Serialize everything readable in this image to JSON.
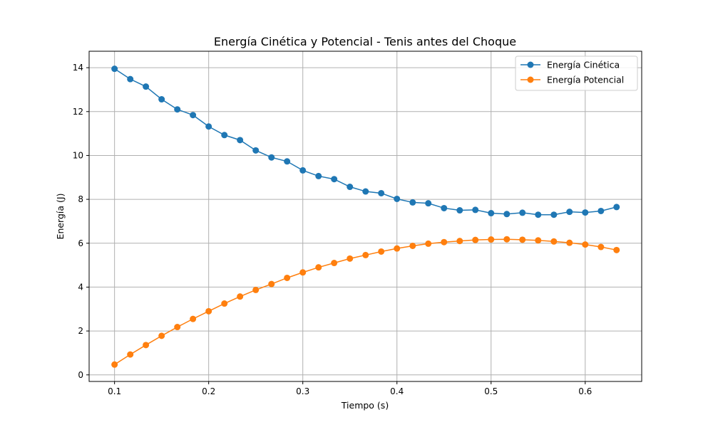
{
  "chart_data": {
    "type": "line",
    "title": "Energía Cinética y Potencial - Tenis antes del Choque",
    "xlabel": "Tiempo (s)",
    "ylabel": "Energía (J)",
    "xlim": [
      0.073,
      0.66
    ],
    "ylim": [
      -0.3,
      14.75
    ],
    "xticks": [
      0.1,
      0.2,
      0.3,
      0.4,
      0.5,
      0.6
    ],
    "xtick_labels": [
      "0.1",
      "0.2",
      "0.3",
      "0.4",
      "0.5",
      "0.6"
    ],
    "yticks": [
      0,
      2,
      4,
      6,
      8,
      10,
      12,
      14
    ],
    "ytick_labels": [
      "0",
      "2",
      "4",
      "6",
      "8",
      "10",
      "12",
      "14"
    ],
    "grid": true,
    "legend_position": "top-right",
    "x": [
      0.1,
      0.1167,
      0.1333,
      0.15,
      0.1667,
      0.1833,
      0.2,
      0.2167,
      0.2333,
      0.25,
      0.2667,
      0.2833,
      0.3,
      0.3167,
      0.3333,
      0.35,
      0.3667,
      0.3833,
      0.4,
      0.4167,
      0.4333,
      0.45,
      0.4667,
      0.4833,
      0.5,
      0.5167,
      0.5333,
      0.55,
      0.5667,
      0.5833,
      0.6,
      0.6167,
      0.6333
    ],
    "series": [
      {
        "name": "Energía Cinética",
        "color": "#1f77b4",
        "values": [
          13.95,
          13.48,
          13.14,
          12.56,
          12.1,
          11.84,
          11.32,
          10.93,
          10.7,
          10.23,
          9.91,
          9.73,
          9.32,
          9.06,
          8.92,
          8.57,
          8.36,
          8.28,
          8.02,
          7.86,
          7.82,
          7.6,
          7.5,
          7.52,
          7.37,
          7.33,
          7.39,
          7.3,
          7.3,
          7.43,
          7.4,
          7.47,
          7.65
        ]
      },
      {
        "name": "Energía Potencial",
        "color": "#ff7f0e",
        "values": [
          0.47,
          0.93,
          1.36,
          1.78,
          2.18,
          2.55,
          2.9,
          3.25,
          3.57,
          3.87,
          4.14,
          4.42,
          4.67,
          4.9,
          5.1,
          5.3,
          5.46,
          5.62,
          5.76,
          5.88,
          5.98,
          6.05,
          6.1,
          6.15,
          6.17,
          6.18,
          6.16,
          6.13,
          6.08,
          6.02,
          5.94,
          5.83,
          5.69
        ]
      }
    ]
  }
}
